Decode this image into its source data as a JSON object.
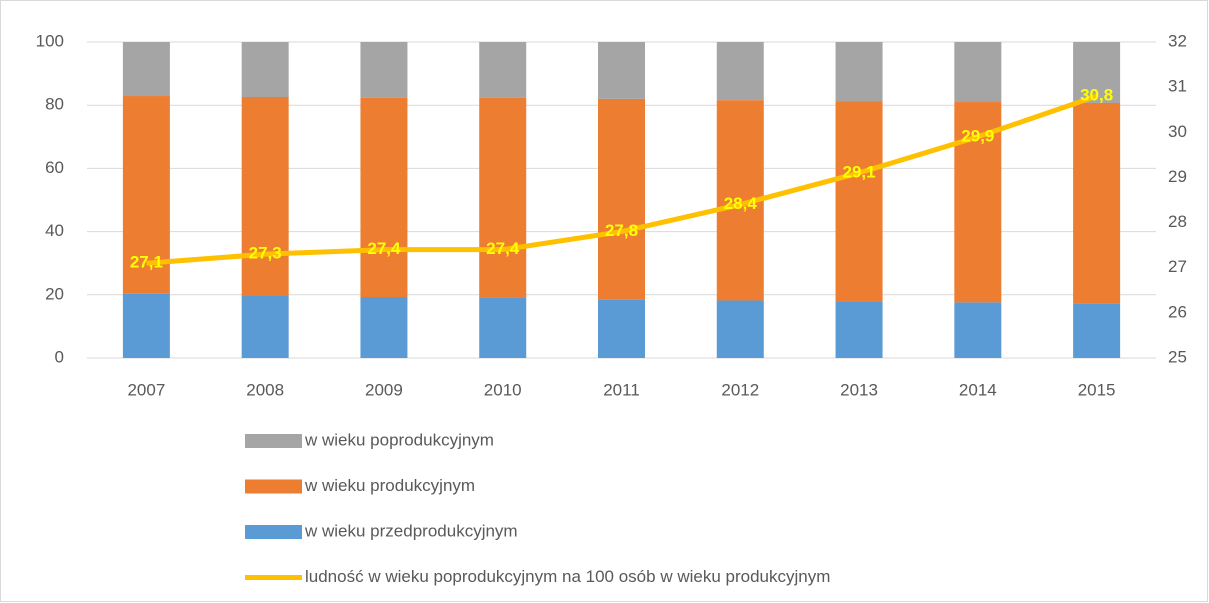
{
  "chart_data": {
    "type": "bar",
    "stacked": true,
    "categories": [
      "2007",
      "2008",
      "2009",
      "2010",
      "2011",
      "2012",
      "2013",
      "2014",
      "2015"
    ],
    "series": [
      {
        "name": "w wieku przedprodukcyjnym",
        "color": "#5b9bd5",
        "values": [
          20.3,
          19.8,
          19.3,
          19.0,
          18.6,
          18.2,
          17.9,
          17.6,
          17.3
        ]
      },
      {
        "name": "w wieku produkcyjnym",
        "color": "#ed7d31",
        "values": [
          62.6,
          62.8,
          63.0,
          63.3,
          63.4,
          63.4,
          63.4,
          63.4,
          63.4
        ]
      },
      {
        "name": "w wieku poprodukcyjnym",
        "color": "#a5a5a5",
        "values": [
          17.1,
          17.4,
          17.7,
          17.7,
          18.0,
          18.4,
          18.7,
          19.0,
          19.3
        ]
      },
      {
        "name": "ludność w wieku poprodukcyjnym na 100 osób w wieku produkcyjnym",
        "color": "#ffc000",
        "type": "line",
        "axis": "y2",
        "values": [
          27.1,
          27.3,
          27.4,
          27.4,
          27.8,
          28.4,
          29.1,
          29.9,
          30.8
        ],
        "value_labels": [
          "27,1",
          "27,3",
          "27,4",
          "27,4",
          "27,8",
          "28,4",
          "29,1",
          "29,9",
          "30,8"
        ]
      }
    ],
    "ylim": [
      0,
      100
    ],
    "yticks": [
      0,
      20,
      40,
      60,
      80,
      100
    ],
    "y2lim": [
      25,
      32
    ],
    "y2ticks": [
      25,
      26,
      27,
      28,
      29,
      30,
      31,
      32
    ],
    "grid": true,
    "legend": "bottom"
  }
}
